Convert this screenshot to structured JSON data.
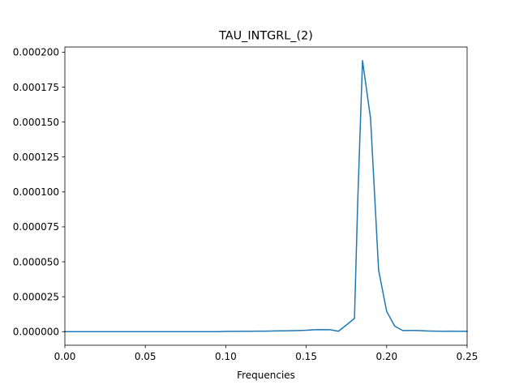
{
  "chart_data": {
    "type": "line",
    "title": "TAU_INTGRL_(2)",
    "xlabel": "Frequencies",
    "ylabel": "",
    "xlim": [
      0.0,
      0.25
    ],
    "ylim": [
      -9.7e-06,
      0.0002037
    ],
    "grid": false,
    "xticks": [
      0.0,
      0.05,
      0.1,
      0.15,
      0.2,
      0.25
    ],
    "xtick_labels": [
      "0.00",
      "0.05",
      "0.10",
      "0.15",
      "0.20",
      "0.25"
    ],
    "yticks": [
      0.0,
      2.5e-05,
      5e-05,
      7.5e-05,
      0.0001,
      0.000125,
      0.00015,
      0.000175,
      0.0002
    ],
    "ytick_labels": [
      "0.000000",
      "0.000025",
      "0.000050",
      "0.000075",
      "0.000100",
      "0.000125",
      "0.000150",
      "0.000175",
      "0.000200"
    ],
    "color": "#1f77b4",
    "series": [
      {
        "x": [
          0.0,
          0.005,
          0.01,
          0.015,
          0.02,
          0.025,
          0.03,
          0.035,
          0.04,
          0.045,
          0.05,
          0.055,
          0.06,
          0.065,
          0.07,
          0.075,
          0.08,
          0.085,
          0.09,
          0.095,
          0.1,
          0.105,
          0.11,
          0.115,
          0.12,
          0.125,
          0.13,
          0.135,
          0.14,
          0.145,
          0.15,
          0.155,
          0.16,
          0.165,
          0.17,
          0.175,
          0.18,
          0.182,
          0.185,
          0.19,
          0.195,
          0.2,
          0.205,
          0.21,
          0.215,
          0.22,
          0.225,
          0.23,
          0.235,
          0.24,
          0.245,
          0.25
        ],
        "values": [
          0.0,
          0.0,
          0.0,
          0.0,
          0.0,
          0.0,
          0.0,
          0.0,
          0.0,
          0.0,
          0.0,
          0.0,
          0.0,
          0.0,
          0.0,
          0.0,
          0.0,
          0.0,
          0.0,
          0.0,
          2e-07,
          2e-07,
          3e-07,
          3e-07,
          4e-07,
          4e-07,
          5e-07,
          6e-07,
          7e-07,
          8e-07,
          1e-06,
          1.4e-06,
          1.5e-06,
          1.4e-06,
          3e-07,
          4.8e-06,
          9.5e-06,
          9.25e-05,
          0.000194,
          0.0001525,
          4.4e-05,
          1.45e-05,
          4e-06,
          8e-07,
          9e-07,
          8e-07,
          5e-07,
          4e-07,
          3e-07,
          4e-07,
          3e-07,
          3e-07
        ]
      }
    ]
  }
}
